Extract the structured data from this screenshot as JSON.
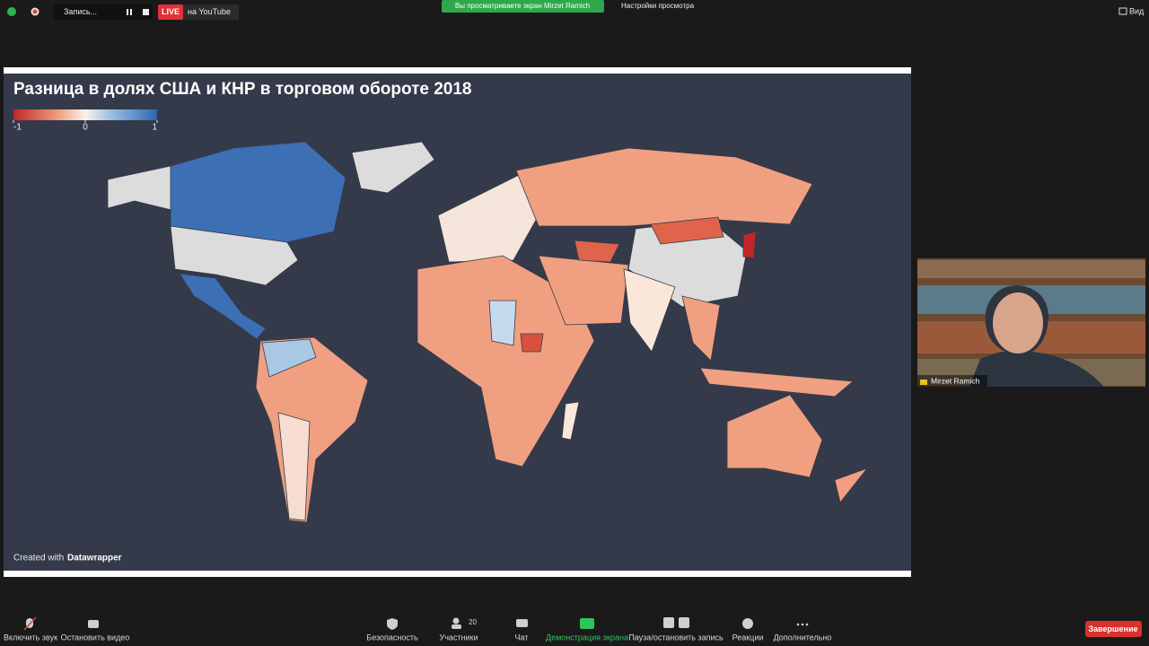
{
  "top_bar": {
    "recording": "Запись...",
    "live": "LIVE",
    "platform": "на YouTube",
    "viewing": "Вы просматриваете экран Mirzet Ramich",
    "view_options": "Настройки просмотра",
    "view": "Вид"
  },
  "shared_screen": {
    "title": "Разница в долях США и КНР в торговом обороте 2018",
    "legend": {
      "ticks": [
        -1,
        0,
        1
      ]
    },
    "credit": "Created with",
    "credit_brand": "Datawrapper"
  },
  "video": {
    "name": "Mirzet Ramich"
  },
  "toolbar": {
    "unmute": "Включить звук",
    "stop_video": "Остановить видео",
    "security": "Безопасность",
    "participants": "Участники",
    "participants_count": 20,
    "chat": "Чат",
    "share_screen": "Демонстрация экрана",
    "pause_recording": "Пауза/остановить запись",
    "reactions": "Реакции",
    "more": "Дополнительно",
    "end": "Завершение"
  }
}
